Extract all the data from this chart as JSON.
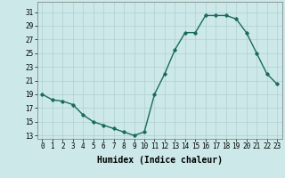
{
  "x": [
    0,
    1,
    2,
    3,
    4,
    5,
    6,
    7,
    8,
    9,
    10,
    11,
    12,
    13,
    14,
    15,
    16,
    17,
    18,
    19,
    20,
    21,
    22,
    23
  ],
  "y": [
    19,
    18.2,
    18,
    17.5,
    16,
    15,
    14.5,
    14,
    13.5,
    13,
    13.5,
    19,
    22,
    25.5,
    28,
    28,
    30.5,
    30.5,
    30.5,
    30,
    28,
    25,
    22,
    20.5
  ],
  "line_color": "#1a6b5a",
  "marker": "D",
  "markersize": 1.8,
  "linewidth": 1.0,
  "bg_color": "#cce8e8",
  "grid_color": "#b0d0d0",
  "xlabel": "Humidex (Indice chaleur)",
  "xlabel_fontsize": 7,
  "yticks": [
    13,
    15,
    17,
    19,
    21,
    23,
    25,
    27,
    29,
    31
  ],
  "xtick_labels": [
    "0",
    "1",
    "2",
    "3",
    "4",
    "5",
    "6",
    "7",
    "8",
    "9",
    "10",
    "11",
    "12",
    "13",
    "14",
    "15",
    "16",
    "17",
    "18",
    "19",
    "20",
    "21",
    "22",
    "23"
  ],
  "ylim": [
    12.5,
    32.5
  ],
  "xlim": [
    -0.5,
    23.5
  ],
  "tick_fontsize": 5.5
}
